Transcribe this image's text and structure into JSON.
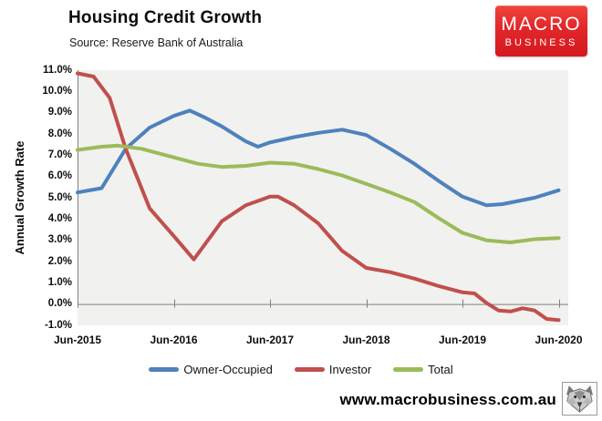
{
  "header": {
    "title": "Housing Credit Growth",
    "source": "Source: Reserve Bank of Australia"
  },
  "logo": {
    "line1": "MACRO",
    "line2": "BUSINESS",
    "bg_color": "#e1272a",
    "text_color": "#ffffff"
  },
  "chart_data": {
    "type": "line",
    "title": "Housing Credit Growth",
    "subtitle": "Source: Reserve Bank of Australia",
    "xlabel": "",
    "ylabel": "Annual Growth Rate",
    "ylim": [
      -1.0,
      11.0
    ],
    "ytick_step": 1.0,
    "ytick_labels": [
      "11.0%",
      "10.0%",
      "9.0%",
      "8.0%",
      "7.0%",
      "6.0%",
      "5.0%",
      "4.0%",
      "3.0%",
      "2.0%",
      "1.0%",
      "0.0%",
      "-1.0%"
    ],
    "xtick_labels": [
      "Jun-2015",
      "Jun-2016",
      "Jun-2017",
      "Jun-2018",
      "Jun-2019",
      "Jun-2020"
    ],
    "x_unit": "months_since_Jun-2015",
    "x_months_span": 60,
    "grid": false,
    "plot_bg": "#f1f1f0",
    "axis_color": "#808080",
    "legend_position": "bottom",
    "series": [
      {
        "name": "Owner-Occupied",
        "color": "#4F81BD",
        "x": [
          0,
          3,
          6,
          9,
          12,
          14,
          16,
          18,
          21,
          22.5,
          24,
          27,
          30,
          33,
          36,
          39,
          42,
          45,
          48,
          51,
          53,
          55,
          57,
          60
        ],
        "values": [
          5.25,
          5.45,
          7.3,
          8.3,
          8.85,
          9.1,
          8.75,
          8.35,
          7.65,
          7.4,
          7.6,
          7.85,
          8.05,
          8.2,
          7.95,
          7.3,
          6.6,
          5.8,
          5.05,
          4.65,
          4.7,
          4.85,
          5.0,
          5.35
        ]
      },
      {
        "name": "Investor",
        "color": "#C0504D",
        "x": [
          0,
          2,
          4,
          6,
          9,
          12,
          14.5,
          18,
          21,
          24,
          25,
          27,
          30,
          33,
          36,
          39,
          42,
          45,
          48,
          49.5,
          51,
          52.5,
          54,
          55.5,
          57,
          58.5,
          60
        ],
        "values": [
          10.85,
          10.7,
          9.7,
          7.3,
          4.5,
          3.2,
          2.1,
          3.9,
          4.65,
          5.05,
          5.05,
          4.65,
          3.8,
          2.5,
          1.7,
          1.5,
          1.2,
          0.85,
          0.55,
          0.5,
          0.05,
          -0.3,
          -0.35,
          -0.2,
          -0.3,
          -0.7,
          -0.75
        ]
      },
      {
        "name": "Total",
        "color": "#9BBB59",
        "x": [
          0,
          3,
          5,
          8,
          12,
          15,
          18,
          21,
          24,
          27,
          30,
          33,
          36,
          39,
          42,
          45,
          48,
          51,
          54,
          57,
          60
        ],
        "values": [
          7.25,
          7.4,
          7.45,
          7.3,
          6.9,
          6.6,
          6.45,
          6.5,
          6.65,
          6.6,
          6.35,
          6.05,
          5.65,
          5.25,
          4.8,
          4.05,
          3.35,
          3.0,
          2.9,
          3.05,
          3.1
        ]
      }
    ]
  },
  "footer": {
    "url": "www.macrobusiness.com.au",
    "wolf_icon": "wolf-icon"
  }
}
